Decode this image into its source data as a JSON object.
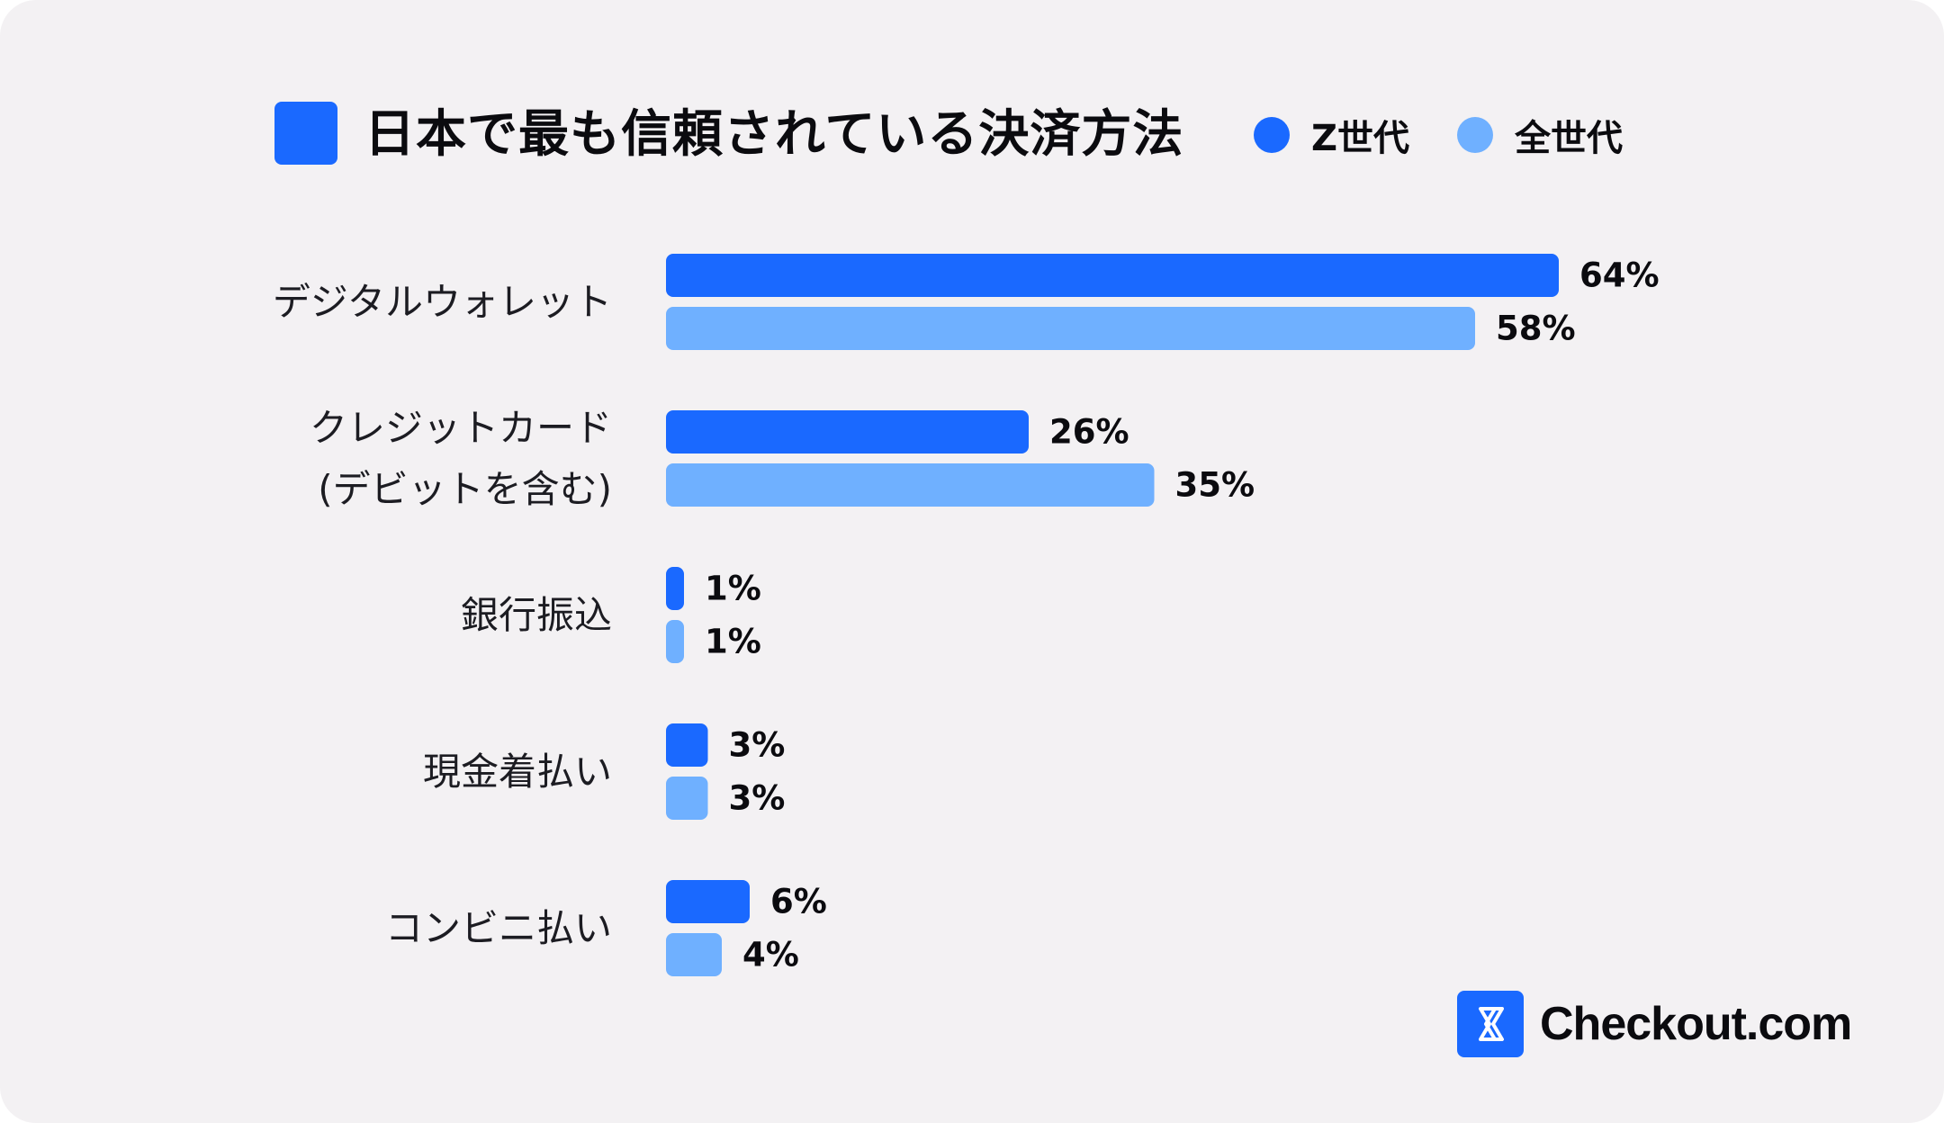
{
  "colors": {
    "z_generation": "#1a69ff",
    "all_generations": "#6fb0ff",
    "background": "#f3f1f3"
  },
  "logo": {
    "text": "Checkout.com",
    "icon": "checkout-logo-icon"
  },
  "chart_data": {
    "type": "bar",
    "orientation": "horizontal",
    "title": "日本で最も信頼されている決済方法",
    "legend_position": "top-right",
    "grid": false,
    "xlim": [
      0,
      64
    ],
    "categories": [
      [
        "デジタルウォレット"
      ],
      [
        "クレジットカード",
        "(デビットを含む)"
      ],
      [
        "銀行振込"
      ],
      [
        "現金着払い"
      ],
      [
        "コンビニ払い"
      ]
    ],
    "series": [
      {
        "name": "Z世代",
        "values": [
          64,
          26,
          1,
          3,
          6
        ],
        "labels": [
          "64%",
          "26%",
          "1%",
          "3%",
          "6%"
        ]
      },
      {
        "name": "全世代",
        "values": [
          58,
          35,
          1,
          3,
          4
        ],
        "labels": [
          "58%",
          "35%",
          "1%",
          "3%",
          "4%"
        ]
      }
    ]
  }
}
